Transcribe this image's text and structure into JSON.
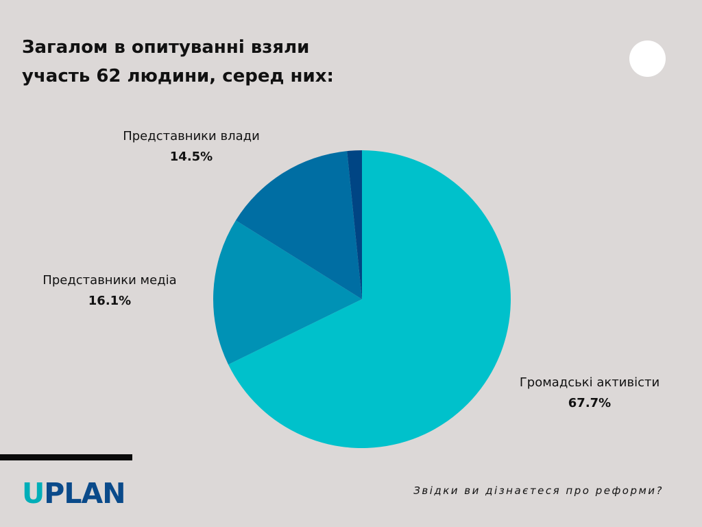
{
  "header": {
    "title_line1": "Загалом в опитуванні взяли",
    "title_line2": "участь 62 людини, серед них:"
  },
  "chart_data": {
    "type": "pie",
    "slices": [
      {
        "label": "Громадські активісти",
        "value": 67.7,
        "value_label": "67.7%",
        "color": "#00c1cb"
      },
      {
        "label": "Представники медіа",
        "value": 16.1,
        "value_label": "16.1%",
        "color": "#0092b5"
      },
      {
        "label": "Представники влади",
        "value": 14.5,
        "value_label": "14.5%",
        "color": "#006ea3"
      },
      {
        "label": "",
        "value": 1.6,
        "value_label": "",
        "color": "#004584"
      }
    ]
  },
  "logo": {
    "first_letter": "U",
    "rest": "PLAN"
  },
  "footer": {
    "tagline": "Звідки ви дізнаєтеся про реформи?"
  }
}
